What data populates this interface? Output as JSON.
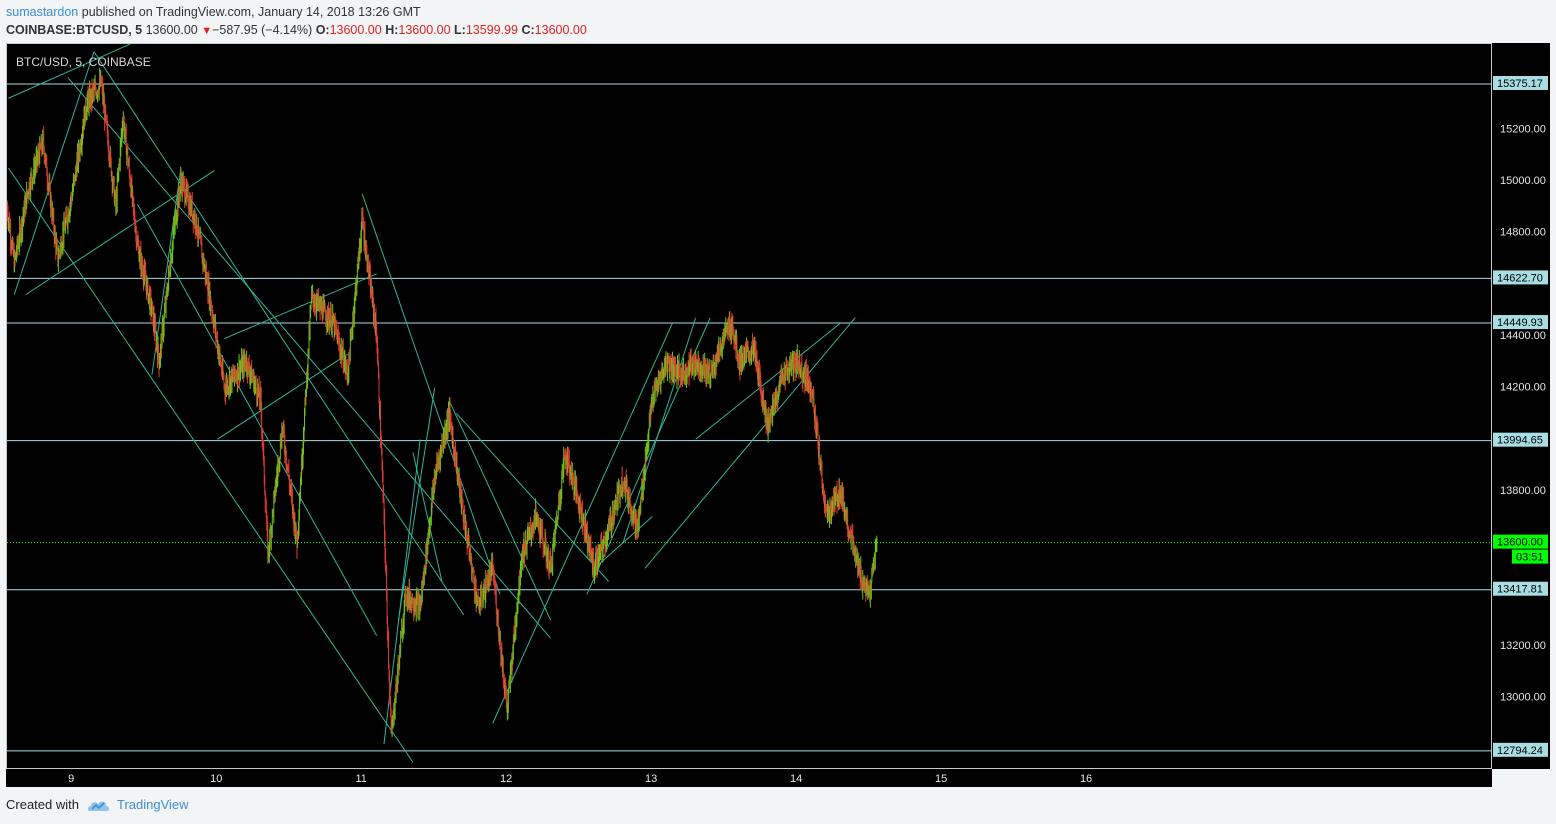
{
  "header": {
    "author": "sumastardon",
    "published": "published on TradingView.com, January 14, 2018 13:26 GMT",
    "symbol": "COINBASE:BTCUSD, 5",
    "last": "13600.00",
    "change": "−587.95 (−4.14%)",
    "o_label": "O:",
    "o_value": "13600.00",
    "h_label": "H:",
    "h_value": "13600.00",
    "l_label": "L:",
    "l_value": "13599.99",
    "c_label": "C:",
    "c_value": "13600.00"
  },
  "chart_data": {
    "type": "candlestick",
    "title": "BTC/USD, 5, COINBASE",
    "x_ticks": [
      "9",
      "10",
      "11",
      "12",
      "13",
      "14",
      "15",
      "16"
    ],
    "y_ticks": [
      "15200.00",
      "15000.00",
      "14800.00",
      "14400.00",
      "14200.00",
      "13800.00",
      "13200.00",
      "13000.00"
    ],
    "ylim": [
      12720,
      15530
    ],
    "xlim": [
      8.55,
      18.8
    ],
    "horizontal_levels": [
      "15375.17",
      "14622.70",
      "14449.93",
      "13994.65",
      "13417.81",
      "12794.24"
    ],
    "last_price": "13600.00",
    "countdown": "03:51",
    "colors": {
      "up": "#6bc419",
      "down": "#e53935",
      "level": "#a8dde4",
      "trend": "#2fb59a",
      "last": "#00ff00"
    },
    "price_path": [
      [
        8.55,
        14900
      ],
      [
        8.6,
        14680
      ],
      [
        8.7,
        14980
      ],
      [
        8.8,
        15150
      ],
      [
        8.9,
        14700
      ],
      [
        9.0,
        14950
      ],
      [
        9.1,
        15300
      ],
      [
        9.2,
        15380
      ],
      [
        9.3,
        14900
      ],
      [
        9.35,
        15250
      ],
      [
        9.45,
        14750
      ],
      [
        9.55,
        14500
      ],
      [
        9.6,
        14300
      ],
      [
        9.7,
        14800
      ],
      [
        9.75,
        15000
      ],
      [
        9.85,
        14850
      ],
      [
        9.95,
        14550
      ],
      [
        10.05,
        14200
      ],
      [
        10.2,
        14300
      ],
      [
        10.3,
        14150
      ],
      [
        10.35,
        13550
      ],
      [
        10.45,
        14050
      ],
      [
        10.55,
        13600
      ],
      [
        10.65,
        14550
      ],
      [
        10.8,
        14450
      ],
      [
        10.9,
        14250
      ],
      [
        11.0,
        14850
      ],
      [
        11.1,
        14400
      ],
      [
        11.15,
        13700
      ],
      [
        11.2,
        12850
      ],
      [
        11.3,
        13400
      ],
      [
        11.4,
        13350
      ],
      [
        11.5,
        13850
      ],
      [
        11.6,
        14100
      ],
      [
        11.7,
        13700
      ],
      [
        11.8,
        13350
      ],
      [
        11.9,
        13500
      ],
      [
        12.0,
        12950
      ],
      [
        12.1,
        13550
      ],
      [
        12.2,
        13700
      ],
      [
        12.3,
        13500
      ],
      [
        12.4,
        13950
      ],
      [
        12.5,
        13750
      ],
      [
        12.6,
        13500
      ],
      [
        12.7,
        13650
      ],
      [
        12.8,
        13850
      ],
      [
        12.9,
        13650
      ],
      [
        13.0,
        14150
      ],
      [
        13.1,
        14300
      ],
      [
        13.2,
        14250
      ],
      [
        13.3,
        14300
      ],
      [
        13.4,
        14250
      ],
      [
        13.5,
        14400
      ],
      [
        13.55,
        14450
      ],
      [
        13.6,
        14300
      ],
      [
        13.7,
        14350
      ],
      [
        13.8,
        14050
      ],
      [
        13.9,
        14250
      ],
      [
        14.0,
        14300
      ],
      [
        14.1,
        14200
      ],
      [
        14.2,
        13700
      ],
      [
        14.3,
        13800
      ],
      [
        14.4,
        13550
      ],
      [
        14.45,
        13450
      ],
      [
        14.5,
        13400
      ],
      [
        14.55,
        13600
      ]
    ],
    "trendlines": [
      [
        [
          8.56,
          15320
        ],
        [
          9.4,
          15530
        ]
      ],
      [
        [
          8.56,
          15050
        ],
        [
          11.35,
          12750
        ]
      ],
      [
        [
          8.6,
          14560
        ],
        [
          9.15,
          15500
        ]
      ],
      [
        [
          8.68,
          14560
        ],
        [
          9.98,
          15040
        ]
      ],
      [
        [
          8.97,
          15400
        ],
        [
          12.3,
          13230
        ]
      ],
      [
        [
          9.15,
          15500
        ],
        [
          11.7,
          13320
        ]
      ],
      [
        [
          9.55,
          14250
        ],
        [
          9.75,
          15050
        ]
      ],
      [
        [
          9.45,
          14910
        ],
        [
          11.1,
          13240
        ]
      ],
      [
        [
          10.0,
          14000
        ],
        [
          10.9,
          14330
        ]
      ],
      [
        [
          10.05,
          14390
        ],
        [
          11.1,
          14640
        ]
      ],
      [
        [
          11.0,
          14950
        ],
        [
          11.95,
          13400
        ]
      ],
      [
        [
          11.15,
          12820
        ],
        [
          11.4,
          14000
        ]
      ],
      [
        [
          11.25,
          13300
        ],
        [
          11.5,
          14200
        ]
      ],
      [
        [
          11.35,
          13950
        ],
        [
          11.55,
          13450
        ]
      ],
      [
        [
          11.6,
          14150
        ],
        [
          12.3,
          13300
        ]
      ],
      [
        [
          11.65,
          14100
        ],
        [
          12.7,
          13450
        ]
      ],
      [
        [
          11.9,
          12900
        ],
        [
          13.14,
          14450
        ]
      ],
      [
        [
          12.55,
          13400
        ],
        [
          13.4,
          14470
        ]
      ],
      [
        [
          12.8,
          13600
        ],
        [
          13.3,
          14470
        ]
      ],
      [
        [
          12.95,
          13500
        ],
        [
          14.4,
          14470
        ]
      ],
      [
        [
          13.3,
          14000
        ],
        [
          14.3,
          14450
        ]
      ],
      [
        [
          12.6,
          13500
        ],
        [
          13.0,
          13700
        ]
      ]
    ]
  },
  "footer": {
    "created": "Created with",
    "brand": "TradingView"
  }
}
